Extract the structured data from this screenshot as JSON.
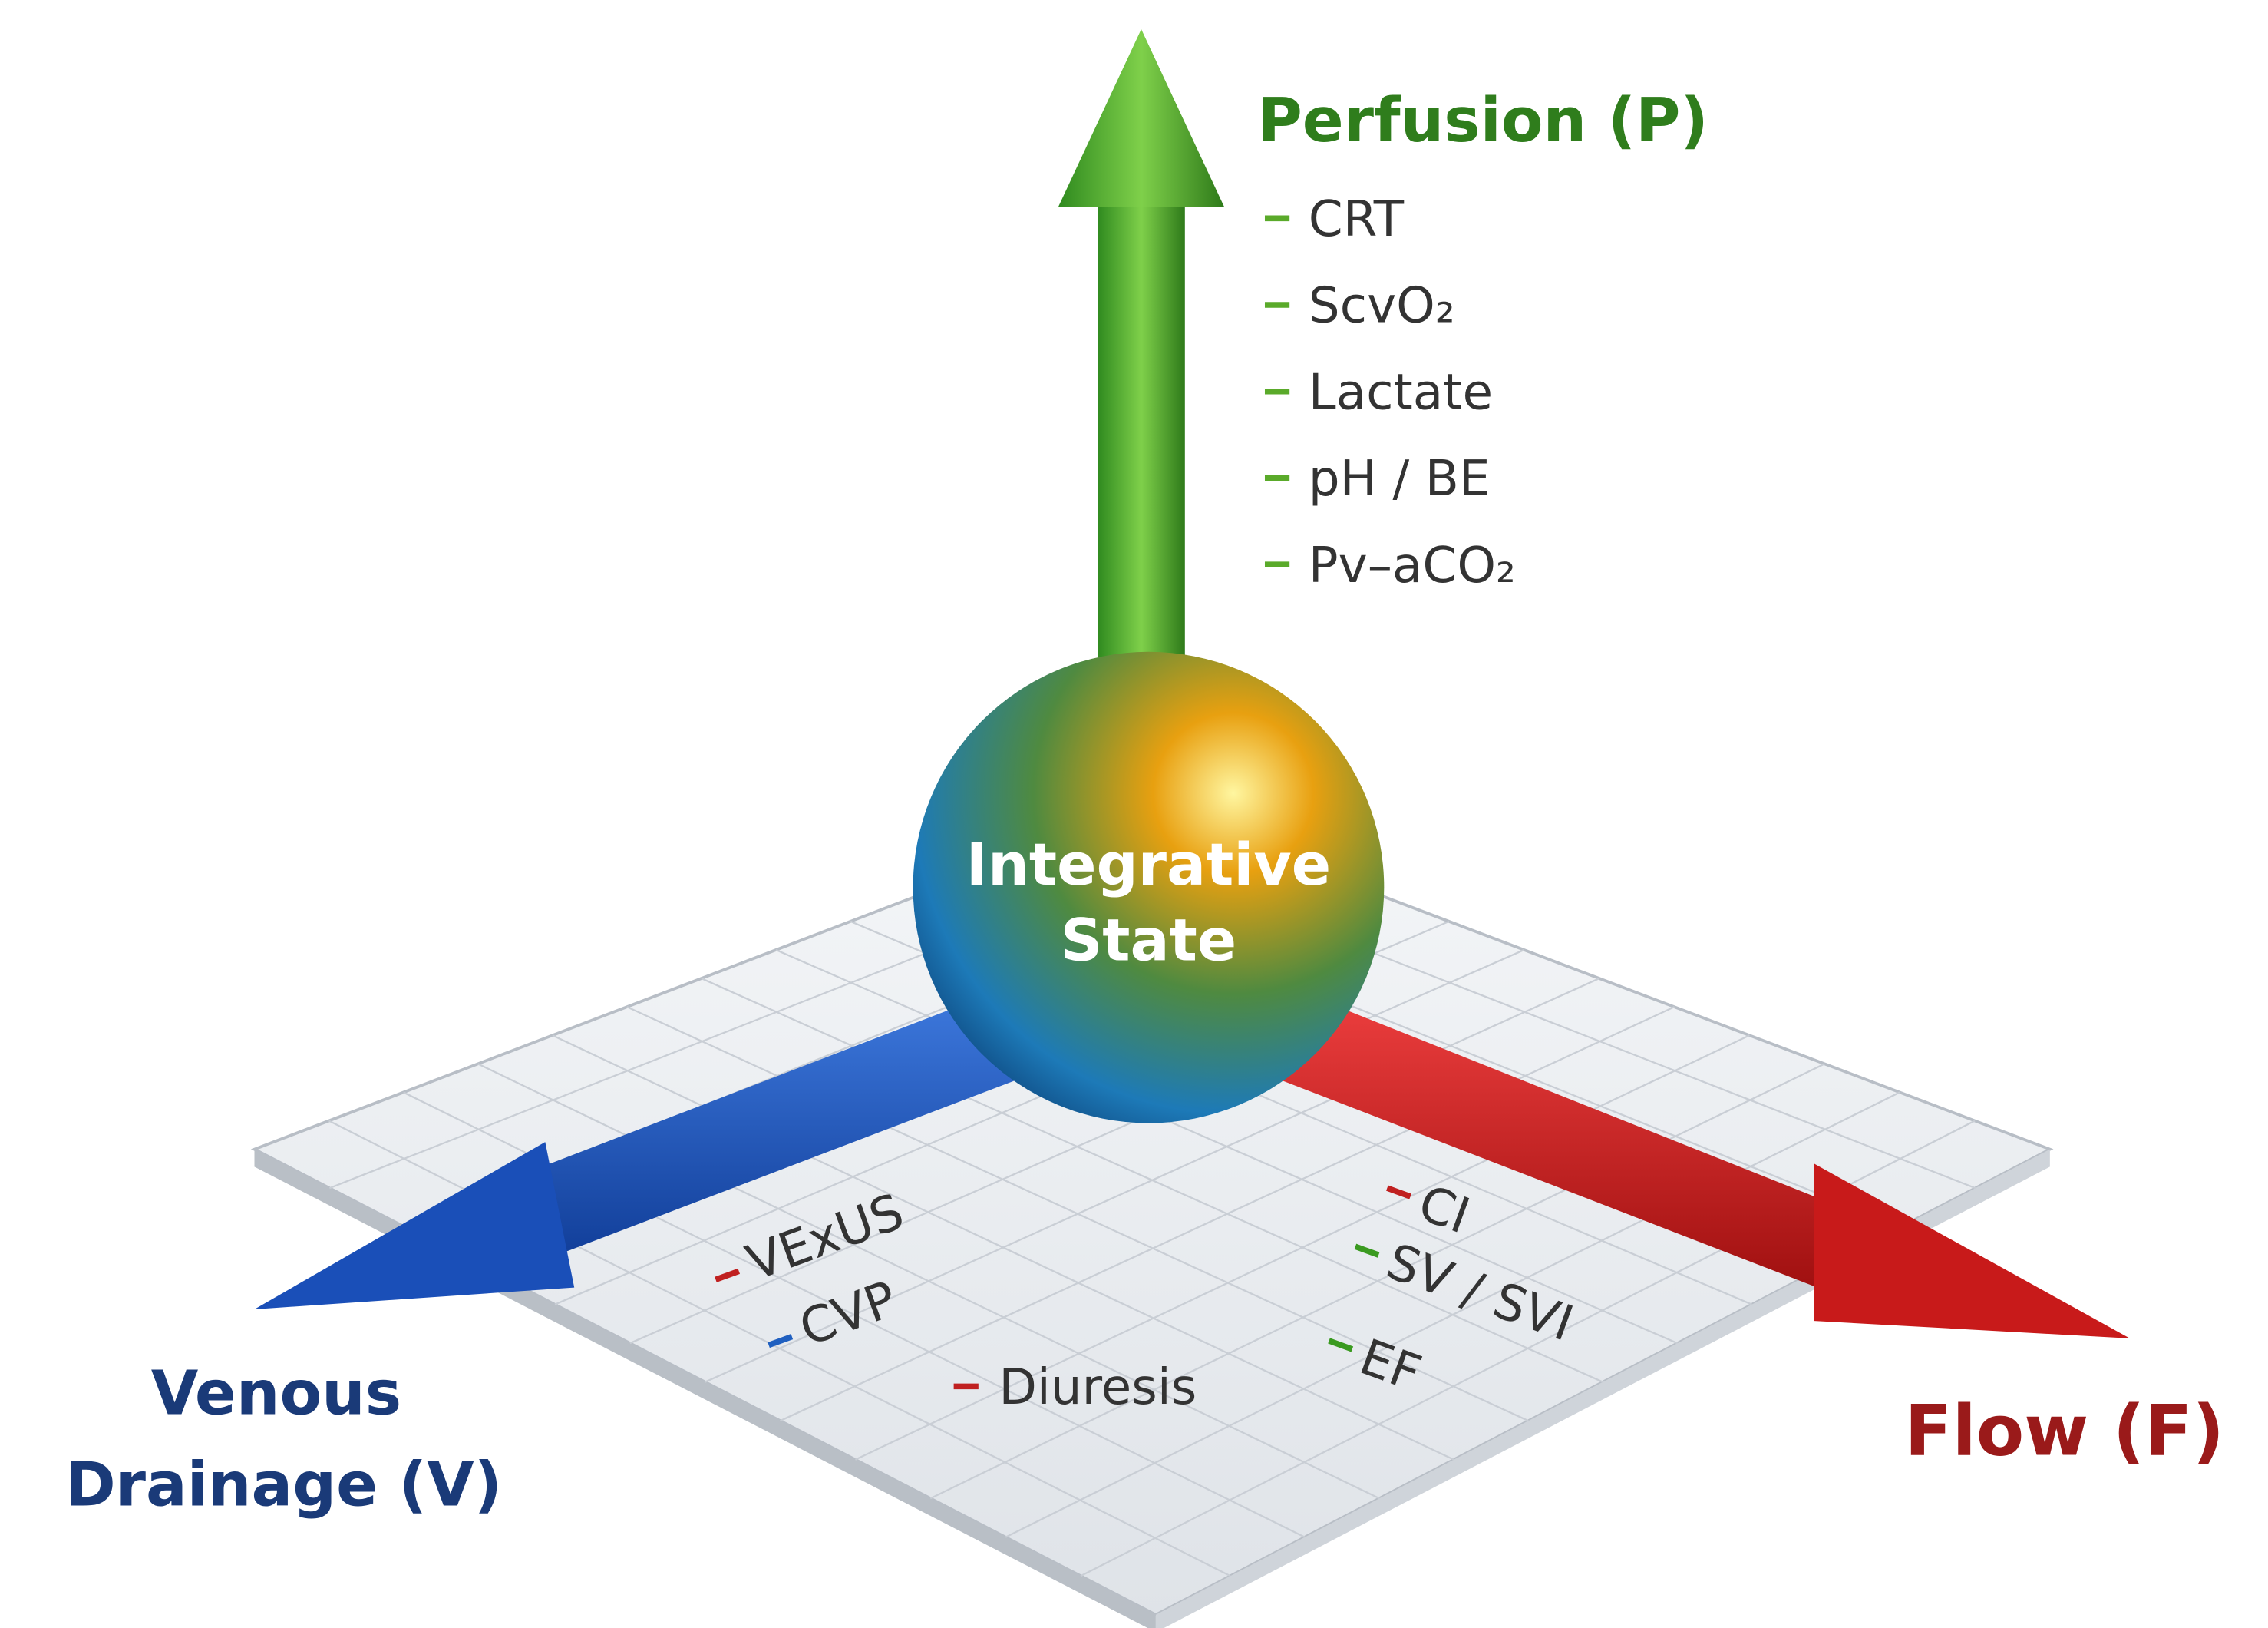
{
  "perfusion": {
    "label": "Perfusion (P)",
    "items": [
      "CRT",
      "ScvO₂",
      "Lactate",
      "pH / BE",
      "Pv–aCO₂"
    ]
  },
  "center": {
    "lines": [
      "Integrative",
      "State"
    ]
  },
  "venous": {
    "lines": [
      "Venous",
      "Drainage (V)"
    ],
    "items": [
      "VExUS",
      "CVP"
    ]
  },
  "flow": {
    "label": "Flow (F)",
    "items": [
      "CI",
      "SV / SVI",
      "EF"
    ]
  },
  "shared": {
    "items": [
      "Diuresis"
    ]
  }
}
